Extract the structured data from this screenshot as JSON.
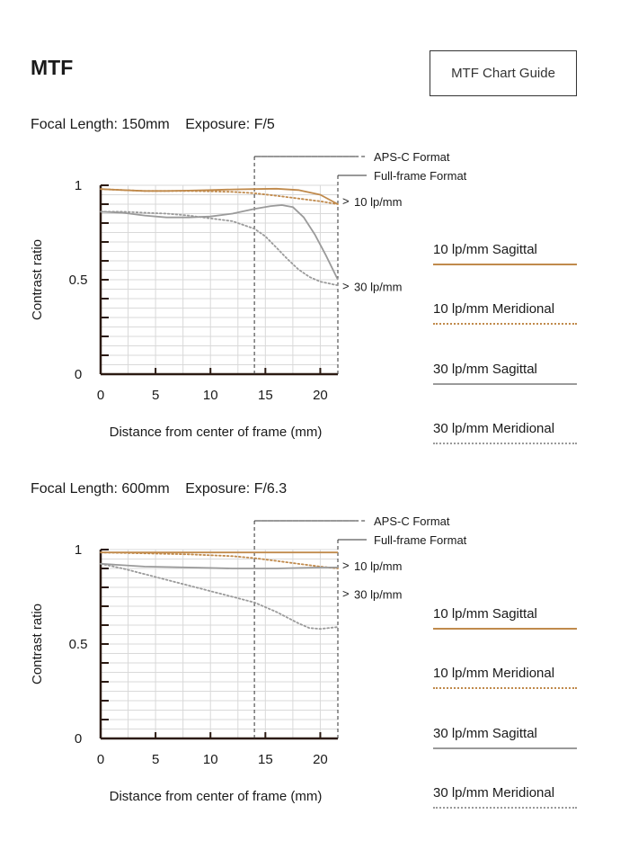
{
  "header": {
    "title": "MTF",
    "guide_button_label": "MTF Chart Guide"
  },
  "colors": {
    "lp10": "#c08a4c",
    "lp30": "#9a9a9a",
    "axis": "#2b1a12",
    "grid": "#d9d9d9"
  },
  "chart_data": [
    {
      "type": "line",
      "focal_label": "Focal Length: 150mm",
      "exposure_label": "Exposure: F/5",
      "xlabel": "Distance from center of frame (mm)",
      "ylabel": "Contrast ratio",
      "xlim": [
        0,
        21.6
      ],
      "ylim": [
        0,
        1
      ],
      "x_ticks": [
        "0",
        "5",
        "10",
        "15",
        "20"
      ],
      "y_ticks": [
        "0",
        "0.5",
        "1"
      ],
      "grid": true,
      "format_markers": [
        {
          "label": "APS-C Format",
          "x": 14
        },
        {
          "label": "Full-frame Format",
          "x": 21.6
        }
      ],
      "annotations": [
        {
          "text": "10 lp/mm",
          "y": 0.92
        },
        {
          "text": "30 lp/mm",
          "y": 0.47
        }
      ],
      "series": [
        {
          "name": "10 lp/mm Sagittal",
          "style": "solid",
          "color": "lp10",
          "points": [
            [
              0,
              0.98
            ],
            [
              2,
              0.975
            ],
            [
              4,
              0.97
            ],
            [
              6,
              0.97
            ],
            [
              8,
              0.972
            ],
            [
              10,
              0.975
            ],
            [
              12,
              0.978
            ],
            [
              14,
              0.98
            ],
            [
              16,
              0.982
            ],
            [
              18,
              0.975
            ],
            [
              20,
              0.95
            ],
            [
              21.6,
              0.9
            ]
          ]
        },
        {
          "name": "10 lp/mm Meridional",
          "style": "dotted",
          "color": "lp10",
          "points": [
            [
              0,
              0.98
            ],
            [
              2,
              0.975
            ],
            [
              4,
              0.97
            ],
            [
              6,
              0.97
            ],
            [
              8,
              0.97
            ],
            [
              10,
              0.968
            ],
            [
              12,
              0.965
            ],
            [
              14,
              0.958
            ],
            [
              16,
              0.945
            ],
            [
              18,
              0.93
            ],
            [
              20,
              0.915
            ],
            [
              21.6,
              0.9
            ]
          ]
        },
        {
          "name": "30 lp/mm Sagittal",
          "style": "solid",
          "color": "lp30",
          "points": [
            [
              0,
              0.86
            ],
            [
              2,
              0.855
            ],
            [
              4,
              0.84
            ],
            [
              6,
              0.83
            ],
            [
              8,
              0.83
            ],
            [
              10,
              0.835
            ],
            [
              12,
              0.85
            ],
            [
              14,
              0.875
            ],
            [
              15.5,
              0.89
            ],
            [
              16.5,
              0.895
            ],
            [
              17.5,
              0.885
            ],
            [
              18.5,
              0.83
            ],
            [
              19.5,
              0.74
            ],
            [
              20.5,
              0.63
            ],
            [
              21.6,
              0.5
            ]
          ]
        },
        {
          "name": "30 lp/mm Meridional",
          "style": "dotted",
          "color": "lp30",
          "points": [
            [
              0,
              0.86
            ],
            [
              2,
              0.86
            ],
            [
              4,
              0.855
            ],
            [
              6,
              0.85
            ],
            [
              8,
              0.84
            ],
            [
              10,
              0.825
            ],
            [
              12,
              0.81
            ],
            [
              14,
              0.77
            ],
            [
              15,
              0.73
            ],
            [
              16,
              0.67
            ],
            [
              17,
              0.61
            ],
            [
              18,
              0.555
            ],
            [
              19,
              0.515
            ],
            [
              20,
              0.49
            ],
            [
              21.6,
              0.47
            ]
          ]
        }
      ]
    },
    {
      "type": "line",
      "focal_label": "Focal Length: 600mm",
      "exposure_label": "Exposure: F/6.3",
      "xlabel": "Distance from center of frame (mm)",
      "ylabel": "Contrast ratio",
      "xlim": [
        0,
        21.6
      ],
      "ylim": [
        0,
        1
      ],
      "x_ticks": [
        "0",
        "5",
        "10",
        "15",
        "20"
      ],
      "y_ticks": [
        "0",
        "0.5",
        "1"
      ],
      "grid": true,
      "format_markers": [
        {
          "label": "APS-C Format",
          "x": 14
        },
        {
          "label": "Full-frame Format",
          "x": 21.6
        }
      ],
      "annotations": [
        {
          "text": "10 lp/mm",
          "y": 0.92
        },
        {
          "text": "30 lp/mm",
          "y": 0.77
        }
      ],
      "series": [
        {
          "name": "10 lp/mm Sagittal",
          "style": "solid",
          "color": "lp10",
          "points": [
            [
              0,
              0.985
            ],
            [
              4,
              0.985
            ],
            [
              8,
              0.985
            ],
            [
              12,
              0.985
            ],
            [
              16,
              0.985
            ],
            [
              21.6,
              0.985
            ]
          ]
        },
        {
          "name": "10 lp/mm Meridional",
          "style": "dotted",
          "color": "lp10",
          "points": [
            [
              0,
              0.985
            ],
            [
              4,
              0.98
            ],
            [
              8,
              0.975
            ],
            [
              12,
              0.965
            ],
            [
              14,
              0.955
            ],
            [
              16,
              0.94
            ],
            [
              18,
              0.925
            ],
            [
              20,
              0.91
            ],
            [
              21.6,
              0.9
            ]
          ]
        },
        {
          "name": "30 lp/mm Sagittal",
          "style": "solid",
          "color": "lp30",
          "points": [
            [
              0,
              0.925
            ],
            [
              4,
              0.91
            ],
            [
              8,
              0.905
            ],
            [
              12,
              0.9
            ],
            [
              16,
              0.9
            ],
            [
              20,
              0.905
            ],
            [
              21.6,
              0.905
            ]
          ]
        },
        {
          "name": "30 lp/mm Meridional",
          "style": "dotted",
          "color": "lp30",
          "points": [
            [
              0,
              0.925
            ],
            [
              2,
              0.9
            ],
            [
              4,
              0.87
            ],
            [
              6,
              0.84
            ],
            [
              8,
              0.81
            ],
            [
              10,
              0.78
            ],
            [
              12,
              0.75
            ],
            [
              14,
              0.72
            ],
            [
              16,
              0.67
            ],
            [
              18,
              0.61
            ],
            [
              19,
              0.585
            ],
            [
              20,
              0.58
            ],
            [
              21.6,
              0.59
            ]
          ]
        }
      ]
    }
  ],
  "legend": [
    {
      "label": "10 lp/mm Sagittal",
      "color": "lp10",
      "style": "solid"
    },
    {
      "label": "10 lp/mm Meridional",
      "color": "lp10",
      "style": "dotted"
    },
    {
      "label": "30 lp/mm Sagittal",
      "color": "lp30",
      "style": "solid"
    },
    {
      "label": "30 lp/mm Meridional",
      "color": "lp30",
      "style": "dotted"
    }
  ]
}
